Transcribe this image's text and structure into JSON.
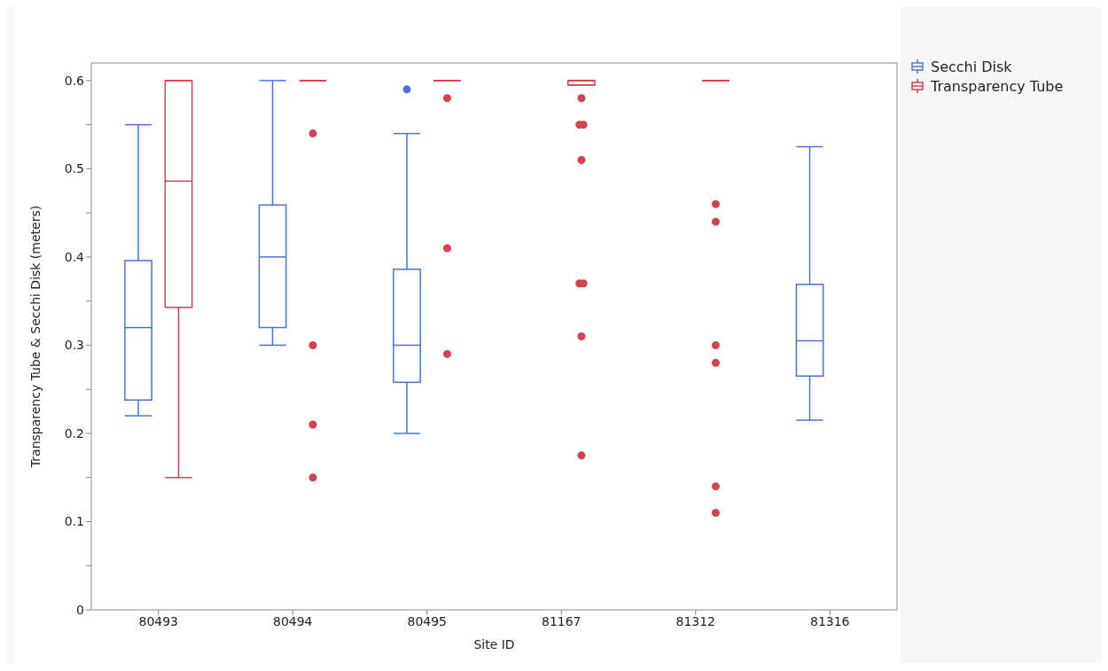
{
  "chart_data": {
    "type": "box",
    "xlabel": "Site ID",
    "ylabel": "Transparency Tube & Secchi Disk (meters)",
    "categories": [
      "80493",
      "80494",
      "80495",
      "81167",
      "81312",
      "81316"
    ],
    "ylim": [
      0,
      0.62
    ],
    "yticks": [
      0,
      {
        "value": 0.05,
        "label": null
      },
      0.1,
      {
        "value": 0.15,
        "label": null
      },
      0.2,
      {
        "value": 0.25,
        "label": null
      },
      0.3,
      {
        "value": 0.35,
        "label": null
      },
      0.4,
      {
        "value": 0.45,
        "label": null
      },
      0.5,
      {
        "value": 0.55,
        "label": null
      },
      0.6
    ],
    "legend": "top right",
    "marker": "circle",
    "series": [
      {
        "name": "Secchi Disk",
        "color": "#4a73e0",
        "boxes": [
          {
            "low": 0.22,
            "q1": 0.238,
            "median": 0.32,
            "q3": 0.396,
            "high": 0.55
          },
          {
            "low": 0.3,
            "q1": 0.32,
            "median": 0.4,
            "q3": 0.459,
            "high": 0.6
          },
          {
            "low": 0.2,
            "q1": 0.258,
            "median": 0.3,
            "q3": 0.386,
            "high": 0.54,
            "outliers": [
              0.59
            ]
          },
          null,
          null,
          {
            "low": 0.215,
            "q1": 0.265,
            "median": 0.305,
            "q3": 0.369,
            "high": 0.525
          }
        ]
      },
      {
        "name": "Transparency Tube",
        "color": "#d4424f",
        "boxes": [
          {
            "low": 0.15,
            "q1": 0.343,
            "median": 0.486,
            "q3": 0.6,
            "high": 0.6
          },
          {
            "low": 0.6,
            "q1": 0.6,
            "median": 0.6,
            "q3": 0.6,
            "high": 0.6,
            "outliers": [
              0.54,
              0.3,
              0.21,
              0.15
            ]
          },
          {
            "low": 0.6,
            "q1": 0.6,
            "median": 0.6,
            "q3": 0.6,
            "high": 0.6,
            "outliers": [
              0.58,
              0.41,
              0.29
            ]
          },
          {
            "low": 0.595,
            "q1": 0.595,
            "median": 0.6,
            "q3": 0.6,
            "high": 0.6,
            "outliers": [
              0.58,
              0.55,
              0.55,
              0.51,
              0.37,
              0.37,
              0.31,
              0.175
            ]
          },
          {
            "low": 0.6,
            "q1": 0.6,
            "median": 0.6,
            "q3": 0.6,
            "high": 0.6,
            "outliers": [
              0.46,
              0.44,
              0.3,
              0.28,
              0.14,
              0.11
            ]
          },
          null
        ]
      }
    ]
  }
}
